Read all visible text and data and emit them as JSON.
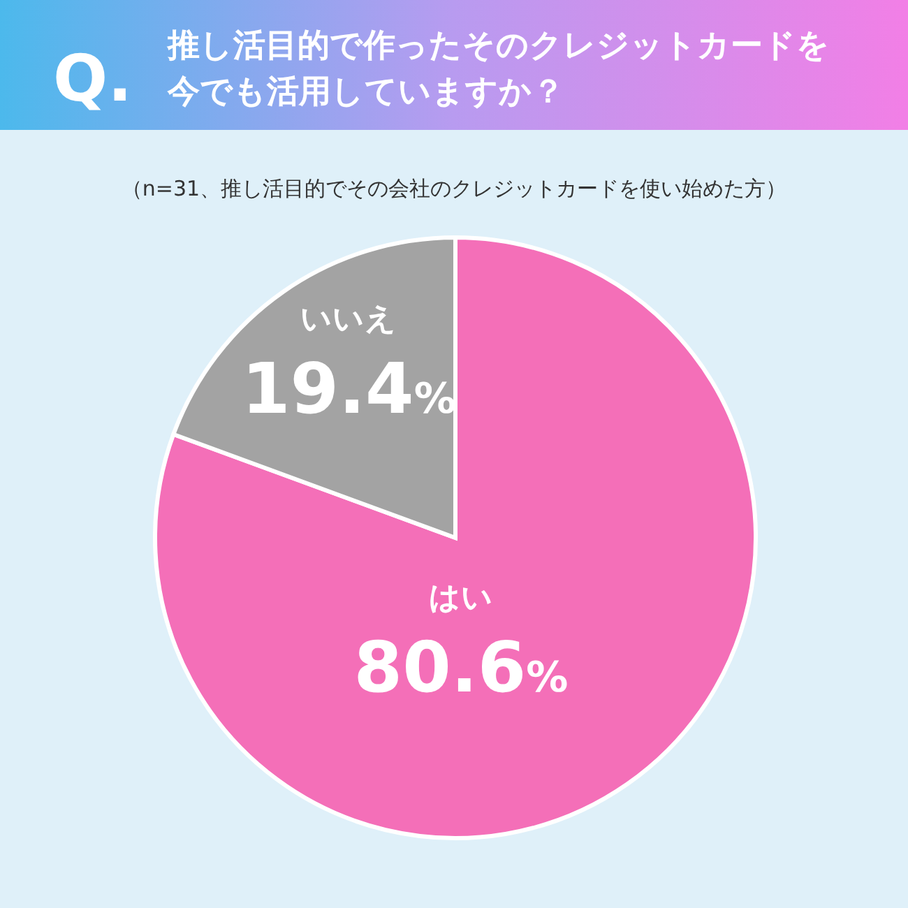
{
  "chart_data": {
    "type": "pie",
    "title": "推し活目的で作ったそのクレジットカードを今でも活用していますか？",
    "subtitle": "（n=31、推し活目的でその会社のクレジットカードを使い始めた方）",
    "annotations": [
      "Q."
    ],
    "categories": [
      "はい",
      "いいえ"
    ],
    "values": [
      80.6,
      19.4
    ],
    "value_labels": [
      "80.6%",
      "19.4%"
    ],
    "colors": [
      "#f46fb8",
      "#a3a3a3"
    ]
  }
}
